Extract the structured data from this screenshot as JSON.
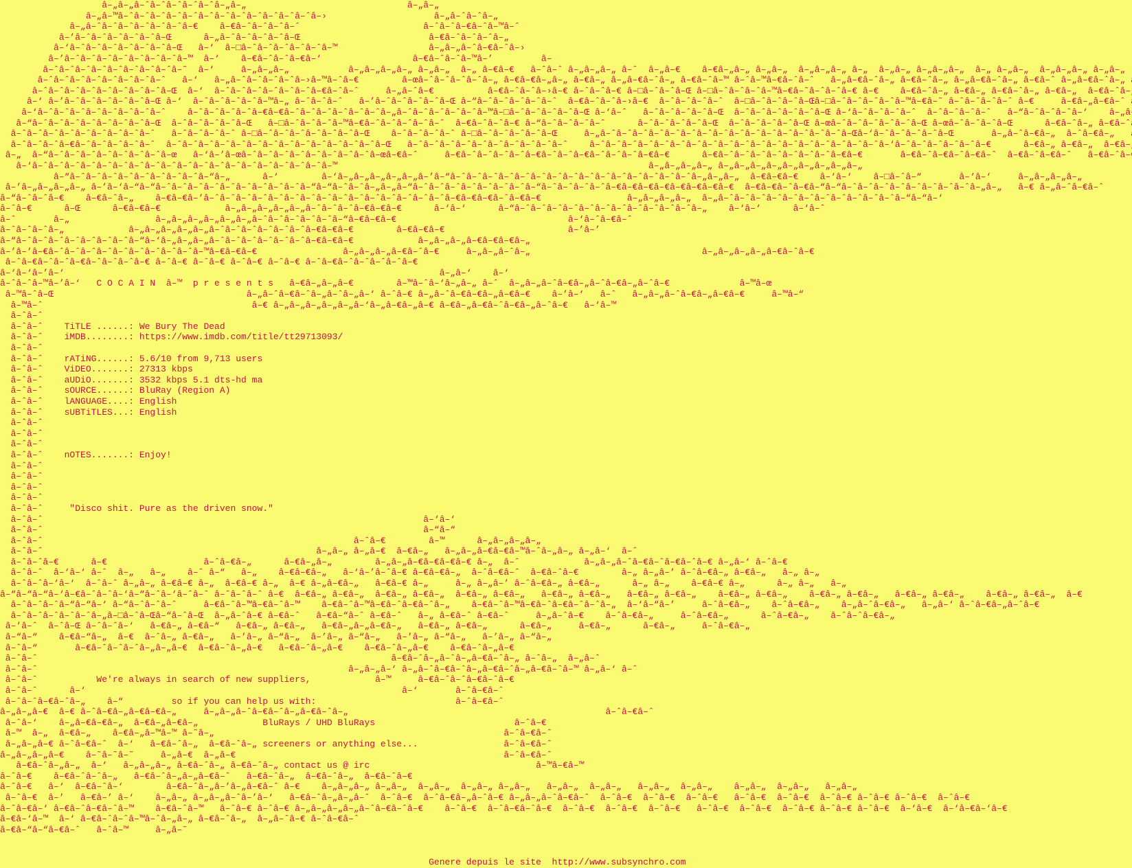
{
  "colors": {
    "background": "#fbfb73",
    "text": "#c81040"
  },
  "release": {
    "group": "COCAIN",
    "presents_line": "C O C A I N    p r e s e n t s",
    "fields": [
      {
        "label": "TiTLE ......",
        "value": "We Bury The Dead"
      },
      {
        "label": "iMDB........",
        "value": "https://www.imdb.com/title/tt29713093/"
      },
      {
        "label": "rATiNG......",
        "value": "5.6/10 from 9,713 users"
      },
      {
        "label": "ViDEO.......",
        "value": "27313 kbps"
      },
      {
        "label": "aUDiO.......",
        "value": "3532 kbps 5.1 dts-hd ma"
      },
      {
        "label": "sOURCE......",
        "value": "BluRay (Region A)"
      },
      {
        "label": "lANGUAGE....",
        "value": "English"
      },
      {
        "label": "sUBTiTLES...",
        "value": "English"
      },
      {
        "label": "nOTES.......",
        "value": "Enjoy!"
      }
    ],
    "quote": "\"Disco shit. Pure as the driven snow.\"",
    "recruitment": [
      "We're always in search of new suppliers,",
      "so if you can help us with:",
      "BluRays / UHD BluRays",
      "screeners or anything else...",
      "contact us @ irc"
    ]
  },
  "footer": {
    "credit": "Genere depuis le site  http://www.subsynchro.com"
  },
  "nfo": {
    "lines": [
      "                   â–„â–„â–ˆâ–ˆâ–ˆâ–ˆâ–ˆâ–„â–„                              â–„â–„",
      "                â–„â–™â–ˆâ–ˆâ–ˆâ–ˆâ–ˆâ–ˆâ–ˆâ–ˆâ–ˆâ–ˆâ–ˆâ–ˆâ–›                    â–„â–ˆâ–ˆâ–„",
      "             â–„â–ˆâ–ˆâ–ˆâ–ˆâ–ˆâ–ˆâ–€    â–€â–ˆâ–ˆâ–ˆâ–ˆ                       â–ˆâ–ˆâ–€â–ˆâ–™â–ˆ",
      "           â–’â–ˆâ–ˆâ–ˆâ–ˆâ–ˆâ–Œ      â–„â–ˆâ–ˆâ–ˆâ–ˆâ–Œ                        â–€â–ˆâ–ˆâ–ˆâ–„",
      "          â–‘â–ˆâ–ˆâ–ˆâ–ˆâ–ˆâ–ˆâ–Œ   â–‘  â–□â–ˆâ–ˆâ–ˆâ–ˆâ–ˆâ–™                 â–„â–„â–ˆâ–€â–ˆâ–›",
      "         â–’â–ˆâ–ˆâ–ˆâ–ˆâ–ˆâ–ˆâ–ˆâ–™  â–‘    â–€â–ˆâ–ˆâ–€â–‘                 â–€â–ˆâ–ˆâ–™â–’         â–",
      "        â–ˆâ–ˆâ–ˆâ–ˆâ–ˆâ–ˆâ–ˆâ–ˆâ–˜  â–‘     â–„â–„â–„           â–„â–„â–„â–„ â–„â–„  â–„ â–€â–€   â–ˆâ–ˆ â–„â–„â–„ â–ˆ  â–„â–€    â–€â–„â–„ â–„â–„  â–„â–„â–„ â–„  â–„â–„ â–„â–„â–„  â–„ â–„â–„  â–„â–„â–„ â–„â–„  â–„â–„  â–„â–„â–„ â–„  â–„â–„",
      "       â–ˆâ–ˆâ–ˆâ–ˆâ–ˆâ–ˆâ–ˆâ–ˆ   â–‘   â–„â–ˆâ–ˆâ–ˆâ–ˆâ–›â–™â–ˆâ–€        â–œâ–ˆâ–ˆâ–ˆâ–ˆâ–„ â–€â–€â–„â–„ â–€â–„ â–„â–€â–ˆâ–„ â–€â–ˆâ–™ â–ˆâ–™â–€â–ˆâ–ˆ   â–„â–€â–ˆâ–„ â–€â–ˆâ–„ â–„â–€â–ˆâ–„ â–€â–ˆ â–„â–€â–ˆâ–„ â–€â–ˆâ–™ â–„â–€â–ˆâ–„ â–€â–ˆâ–„ â–„â–€â–ˆâ–„ â–€â–ˆâ–™  â–„â–€",
      "      â–ˆâ–ˆâ–ˆâ–ˆâ–ˆâ–ˆâ–ˆâ–ˆâ–Œ  â–‘  â–ˆâ–ˆâ–ˆâ–ˆâ–ˆâ–ˆâ–€â–ˆâ–ˆ     â–„â–ˆâ–€          â–€â–ˆâ–ˆâ–›â–€ â–ˆâ–ˆâ–€ â–□â–ˆâ–ˆâ–Œ â–□â–ˆâ–ˆâ–ˆâ–™â–€â–˜â–ˆâ–ˆâ–€ â–€    â–€â–ˆâ–„ â–€â–„ â–€â–ˆâ–„ â–€â–„  â–€â–ˆâ–„ â–€â–„  â–€â–ˆâ–„ â–€â–„  â–€â–ˆâ–„ â–€â–„  â–€â–ˆ",
      "     â–‘ â–’â–ˆâ–ˆâ–ˆâ–ˆâ–ˆâ–Œ â–‘  â–ˆâ–ˆâ–ˆâ–ˆâ–™â–„ â–ˆâ–ˆâ–ˆ   â–’â–ˆâ–ˆâ–ˆâ–ˆâ–Œ â–“â–ˆâ–ˆâ–ˆâ–ˆâ–ˆ  â–€â–ˆâ–ˆâ–›â–€  â–ˆâ–ˆâ–ˆâ–ˆ  â–□â–ˆâ–ˆâ–ˆâ–Œâ–□â–ˆâ–ˆâ–ˆâ–ˆâ–™â–€â–˜ â–ˆâ–ˆâ–ˆâ–ˆ â–€     â–€â–„â–€â–ˆ â–€â–„â–€â–ˆ  â–€â–„â–€â–ˆ  â–€â–„â–€â–ˆ   â–€â–„â–€â–ˆ",
      "    â–‘â–ˆâ–ˆâ–ˆâ–ˆâ–ˆâ–ˆâ–ˆâ–ˆ    â–ˆâ–ˆâ–ˆâ–ˆâ–€â–€â–ˆâ–ˆâ–ˆâ–ˆâ–ˆâ–ˆâ–„â–ˆâ–ˆâ–ˆâ–ˆâ–ˆâ–™â–□â–ˆâ–ˆâ–ˆâ–ˆâ–Œ â–‘â–ˆ   â–ˆâ–ˆâ–ˆâ–ˆâ–Œ  â–ˆâ–ˆâ–ˆâ–ˆâ–ˆâ–Œ â–‘â–ˆâ–ˆâ–ˆâ–ˆ  â–ˆâ–ˆâ–ˆâ–ˆ   â–“â–ˆâ–ˆâ–ˆâ–‘    â–„â–ˆâ–€â–ˆ â–„â–ˆâ–€â–ˆ  â–„â–ˆâ–€â–ˆ  â–„â–ˆâ–€â–ˆ   â–„â–ˆâ–€â–ˆ  â–„â–€",
      "   â–“â–ˆâ–ˆâ–ˆâ–ˆâ–ˆâ–ˆâ–ˆâ–Œ  â–ˆâ–ˆâ–ˆâ–ˆâ–Œ   â–□â–ˆâ–ˆâ–ˆâ–™â–€â–ˆâ–ˆâ–ˆâ–ˆâ–ˆ  â–€â–ˆâ–ˆâ–€ â–“â–ˆâ–ˆâ–ˆâ–ˆ      â–ˆâ–ˆâ–ˆâ–ˆâ–Œ  â–ˆâ–ˆâ–ˆâ–ˆâ–Œ â–œâ–ˆâ–ˆâ–ˆâ–ˆâ–ˆâ–Œ â–œâ–ˆâ–ˆâ–ˆâ–Œ      â–€â–ˆâ–„ â–€â–ˆâ–„  â–€â–ˆâ–„  â–€â–ˆâ–„   â–€â–ˆâ–„  â–€",
      "  â–ˆâ–ˆâ–ˆâ–ˆâ–ˆâ–ˆâ–ˆâ–ˆâ–ˆ   â–ˆâ–ˆâ–ˆâ–ˆ â–□â–ˆâ–ˆâ–ˆâ–ˆâ–ˆâ–ˆâ–Œ    â–ˆâ–ˆâ–ˆâ–ˆ â–□â–ˆâ–ˆâ–ˆâ–ˆâ–Œ     â–„â–ˆâ–ˆâ–ˆâ–ˆâ–ˆâ–ˆâ–ˆâ–ˆâ–ˆâ–ˆâ–ˆâ–ˆâ–ˆâ–ˆâ–ˆâ–Œâ–‘â–ˆâ–ˆâ–ˆâ–ˆâ–Œ       â–„â–ˆâ–€â–„  â–ˆâ–€â–„   â–ˆâ–€â–„   â–ˆâ–€â–„    â–ˆâ–€â–„",
      "  â–ˆâ–ˆâ–ˆâ–€â–ˆâ–ˆâ–ˆâ–ˆâ–ˆ  â–ˆâ–ˆâ–ˆâ–ˆâ–ˆâ–ˆâ–ˆâ–ˆâ–ˆâ–ˆâ–ˆâ–ˆâ–ˆâ–Œ   â–ˆâ–ˆâ–ˆâ–ˆâ–ˆâ–ˆâ–ˆâ–ˆâ–ˆâ–ˆ    â–ˆâ–ˆâ–ˆâ–ˆâ–ˆâ–ˆâ–ˆâ–ˆâ–ˆâ–ˆâ–ˆâ–ˆâ–ˆâ–ˆâ–ˆâ–ˆâ–ˆâ–ˆâ–‘â–ˆâ–ˆâ–ˆâ–ˆâ–ˆâ–€      â–€â–„ â–€â–„  â–€â–„ â–€â–„  â–€â–„ â–€â–„   â–€â–„ â–€â–„    â–€â–„",
      " â–„  â–“â–ˆâ–ˆâ–ˆâ–ˆâ–ˆâ–ˆâ–ˆâ–œ   â–‘â–’â–œâ–ˆâ–ˆâ–ˆâ–ˆâ–ˆâ–ˆâ–ˆâ–ˆâ–œâ–€â–ˆ     â–€â–ˆâ–ˆâ–ˆâ–ˆâ–€â–ˆâ–ˆâ–€â–ˆâ–ˆâ–ˆâ–€â–€      â–€â–ˆâ–ˆâ–ˆâ–ˆâ–ˆâ–ˆâ–ˆâ–€â–€       â–€â–ˆâ–€â–ˆâ–€â–ˆ  â–€â–ˆâ–€â–ˆ   â–€â–ˆâ–€â–ˆ    â–€â–ˆ",
      "   â–‘â–ˆâ–ˆâ–ˆâ–ˆâ–ˆâ–ˆâ–ˆâ–ˆâ–ˆâ–ˆâ–ˆâ–ˆâ–ˆâ–ˆâ–ˆâ–ˆâ–ˆâ–ˆâ–™                                                          â–„â–„â–„â–„ â–„â–„â–„â–„â–„â–„â–„â–„â–„",
      "          â–“â–ˆâ–ˆâ–ˆâ–ˆâ–ˆâ–ˆâ–ˆâ–ˆâ–“â–„      â–‘        â–‘â–„â–„â–„â–„â–„â–’â–“â–ˆâ–ˆâ–ˆâ–ˆâ–ˆâ–ˆâ–ˆâ–ˆâ–ˆâ–ˆâ–ˆâ–ˆâ–ˆâ–ˆâ–ˆâ–„â–„â–„  â–€â–€â–€    â–‘â–‘    â–□â–ˆâ–“       â–‘â–‘     â–„â–„â–„â–„",
      " â–’â–„â–„â–„â–„ â–’â–‘â–“â–“â–ˆâ–ˆâ–ˆâ–ˆâ–ˆâ–ˆâ–ˆâ–ˆâ–ˆâ–“â–“â–ˆâ–ˆâ–„â–„â–“â–ˆâ–ˆâ–ˆâ–ˆâ–ˆâ–ˆâ–ˆâ–“â–ˆâ–ˆâ–ˆâ–ˆâ–€â–€â–€â–€â–€â–€â–€â–€  â–€â–€â–ˆâ–€â–“â–“â–ˆâ–ˆâ–ˆâ–ˆâ–ˆâ–ˆâ–ˆâ–ˆâ–„â–„   â–€ â–„â–ˆâ–€â–ˆ      â–€ â–„â–ˆâ–€â–ˆâ–€",
      "â–“â–ˆâ–ˆâ–€    â–€â–ˆâ–„    â–€â–€â–’â–ˆâ–ˆâ–ˆâ–ˆâ–ˆâ–ˆâ–ˆâ–ˆâ–ˆâ–ˆâ–ˆâ–ˆâ–ˆâ–ˆâ–ˆâ–€â–€â–€â–ˆâ–€â–€                â–„â–„â–„â–„  â–„â–ˆâ–ˆâ–ˆâ–ˆâ–ˆâ–ˆâ–ˆâ–ˆâ–ˆâ–ˆâ–ˆâ–“â–“â–‘",
      "â–ˆâ–€      â–Œ      â–€â–€â–€            â–„â–„â–„â–„â–„â–ˆâ–ˆâ–ˆâ–€â–€â–€      â–‘â–‘      â–“â–ˆâ–ˆâ–ˆâ–ˆâ–ˆâ–ˆâ–ˆâ–ˆâ–ˆâ–ˆâ–ˆâ–„    â–‘â–‘      â–‘â–ˆ",
      "â–ˆ       â–„                â–„â–„â–„â–„â–„â–„â–ˆâ–ˆâ–ˆâ–ˆâ–ˆâ–“â–€â–€â–€                                â–‘â–ˆâ–€â–ˆ",
      "â–ˆâ–ˆâ–ˆâ–„            â–„â–„â–„â–„â–„â–ˆâ–ˆâ–ˆâ–ˆâ–ˆâ–ˆâ–€â–€â–€        â–€â–€â–€                       â–’â–’",
      "â–“â–ˆâ–ˆâ–ˆâ–ˆâ–ˆâ–ˆâ–ˆâ–“â–‘â–„â–„â–„â–ˆâ–ˆâ–ˆâ–ˆâ–ˆâ–ˆâ–€â–€â–€            â–„â–„â–„â–€â–€â–€â–„",
      "â–’â–’â–€â–ˆâ–ˆâ–ˆâ–ˆâ–ˆâ–ˆâ–ˆâ–ˆâ–ˆâ–™â–€â–€â–€                â–„â–„â–„â–€â–ˆâ–€     â–„â–„â–ˆâ–„                                â–„â–„â–„â–„â–€â–ˆâ–€",
      " â–ˆâ–€â–ˆâ–ˆâ–€â–ˆâ–ˆâ–ˆâ–€ â–ˆâ–€ â–ˆâ–€ â–ˆâ–€ â–ˆâ–€ â–ˆâ–€â–ˆâ–ˆâ–ˆâ–ˆâ–€",
      "â–‘â–‘â–’â–‘                                                                      â–„â–‘    â–‘",
      "â–ˆâ–ˆâ–™â–’â–‘   C O C A I N  â–™  p r e s e n t s   â–€â–„â–„â–€        â–™â–ˆâ–‘â–„â–„ â–ˆ  â–„â–„â–ˆâ–€â–„â–ˆâ–€â–„â–ˆâ–€             â–™â–œ",
      " â–™â–ˆâ–Œ                                    â–„â–ˆâ–€â–ˆâ–„â–ˆâ–„â–‘ â–ˆâ–€ â–„â–ˆâ–€â–€â–„â–€â–€    â–’â–‘   â–ˆ   â–„â–„â–ˆâ–€â–„â–€â–€     â–™â–“",
      "  â–™â–ˆ                                       â–€ â–„â–„â–„â–„â–„â–‘â–„â–€â–„â–€ â–€â–„â–€â–ˆâ–€â–„â–ˆâ–€   â–‘â–™",
      "  â–ˆâ–ˆ",
      "  â–ˆâ–ˆ    TiTLE ......: We Bury The Dead",
      "  â–ˆâ–ˆ    iMDB........: https://www.imdb.com/title/tt29713093/",
      "  â–ˆâ–ˆ",
      "  â–ˆâ–ˆ    rATiNG......: 5.6/10 from 9,713 users",
      "  â–ˆâ–ˆ    ViDEO.......: 27313 kbps",
      "  â–ˆâ–ˆ    aUDiO.......: 3532 kbps 5.1 dts-hd ma",
      "  â–ˆâ–ˆ    sOURCE......: BluRay (Region A)",
      "  â–ˆâ–ˆ    lANGUAGE....: English",
      "  â–ˆâ–ˆ    sUBTiTLES...: English",
      "  â–ˆâ–ˆ",
      "  â–ˆâ–ˆ",
      "  â–ˆâ–ˆ",
      "  â–ˆâ–ˆ    nOTES.......: Enjoy!",
      "  â–ˆâ–ˆ",
      "  â–ˆâ–ˆ",
      "  â–ˆâ–ˆ",
      "  â–ˆâ–ˆ",
      "  â–ˆâ–ˆ     \"Disco shit. Pure as the driven snow.\"",
      "  â–ˆâ–ˆ                                                                       â–‘â–‘",
      "  â–ˆâ–ˆ                                                                       â–“â–“",
      "  â–ˆâ–ˆ                                                          â–ˆâ–€        â–™      â–„â–„â–„â–„",
      "  â–ˆâ–ˆ                                                   â–„â–„ â–„â–€  â–€â–„   â–„â–„â–€â–€â–™â–ˆâ–„â–„ â–„â–‘  â–ˆ",
      "  â–ˆâ–ˆâ–€      â–€                  â–ˆâ–€â–„      â–€â–„â–„        â–„â–„â–€â–€â–€â–€ â–„  â–ˆ            â–„â–„â–ˆâ–€â–ˆâ–€â–ˆâ–€ â–„â–‘ â–ˆâ–€",
      "  â–ˆâ–ˆ  â–‘â–‘ â–ˆ  â–„   â–„    â–ˆ â–“   â–„    â–€â–€â–„   â–‘â–’â–ˆâ–€ â–€â–€â–„  â–ˆâ–€â–ˆ  â–€â–ˆâ–€        â–„ â–„â–’ â–ˆâ–€â–„ â–€â–„   â–„ â–„",
      "  â–ˆâ–ˆâ–‘â–‘  â–ˆâ–ˆ â–„â–„ â–€â–€ â–„  â–€â–€ â–„  â–€ â–„â–€â–„   â–€â–€ â–„     â–„ â–„â–’ â–ˆâ–€â–„ â–€â–„      â–„ â–„    â–€â–€ â–„      â–„ â–„   â–„",
      "â–“â–“â–“â–‘â–€â–ˆâ–ˆâ–‘â–“â–ˆâ–‘â–ˆâ–ˆ â–ˆâ–ˆâ–ˆ â–€  â–€â–„ â–€â–„  â–€â–„ â–€â–„  â–€â–„ â–€â–„   â–€â–„ â–€â–„   â–€â–„ â–€â–„    â–€â–„ â–€â–„    â–€â–„ â–€â–„   â–€â–„ â–€â–„    â–€â–„ â–€â–„  â–€",
      "  â–ˆâ–ˆâ–ˆâ–“â–“â–‘ â–“â–ˆâ–ˆâ–ˆ     â–€â–ˆâ–™â–€â–ˆâ–™    â–€â–ˆâ–™â–€â–ˆâ–€â–ˆâ–„    â–€â–ˆâ–™â–€â–ˆâ–€â–ˆâ–ˆâ–„  â–‘â–“â–’     â–ˆâ–€â–„    â–ˆâ–€â–„    â–„â–ˆâ–€â–„   â–„â–‘ â–ˆâ–€â–„â–ˆâ–€",
      "  â–ˆâ–ˆâ–ˆâ–ˆâ–ˆâ–„â–□â–ˆâ–Œâ–“â–ˆâ–Œ  â–„â–ˆâ–€ â–€â–ˆ   â–€â–“â–ˆ â–€â–ˆ   â–„ â–€â–ˆ â–€â–ˆ     â–„â–ˆâ–€    â–ˆâ–€â–„     â–ˆâ–€â–„      â–ˆâ–€â–„    â–ˆâ–ˆâ–€â–„",
      " â–’â–ˆ  â–ˆâ–Œ â–ˆâ–ˆâ–‘   â–€â–„ â–€â–“   â–€â–„ â–€â–„   â–€â–„â–„â–€â–„   â–€â–„ â–€â–„      â–€â–„     â–€â–„      â–€â–„     â–ˆâ–€â–„",
      " â–“â–“    â–€â–“â–„  â–€  â–ˆâ–„ â–€â–„   â–’â–„ â–“â–„  â–’â–„ â–“â–„   â–’â–„ â–“â–„   â–’â–„ â–“â–„",
      " â–ˆâ–“       â–€â–ˆâ–ˆâ–ˆâ–„â–„â–€  â–€â–ˆâ–„â–€   â–€â–ˆâ–„â–€    â–€â–ˆâ–„â–€    â–€â–ˆâ–„â–€",
      " â–ˆâ–ˆ                                                                  â–€â–ˆâ–„â–ˆâ–„â–€â–ˆâ–„ â–ˆâ–„  â–„â–ˆ",
      " â–ˆâ–ˆ                                                          â–„â–„â–‘ â–„â–ˆâ–€â–ˆâ–„â–€â–ˆâ–„â–€â–ˆâ–™ â–„â–‘ â–ˆ",
      " â–ˆâ–ˆ           We're always in search of new suppliers,            â–™     â–€â–ˆâ–ˆâ–€â–ˆâ–€",
      " â–ˆâ–ˆ      â–‘                                                           â–‘       â–ˆâ–€â–ˆ",
      " â–ˆâ–ˆâ–€â–ˆâ–„    â–“         so if you can help us with:                          â–ˆâ–€â–ˆ",
      "â–„â–„â–€  â–€ â–ˆâ–€â–„â–€â–€â–„     â–„â–„â–ˆâ–€â–ˆâ–„â–€â–ˆâ–„                                                â–ˆâ–€â–ˆ",
      " â–ˆâ–‘    â–„â–€â–€â–„  â–€â–„â–€â–„            BluRays / UHD BluRays                          â–ˆâ–€",
      " â–™  â–„  â–€â–„    â–€â–„â–™â–™ â–˜â–„                                                      â–ˆâ–€â–ˆ",
      " â–„â–„â–€ â–ˆâ–€â–ˆ  â–‘   â–€â–ˆâ–„  â–€â–ˆâ–„ screeners or anything else...                â–ˆâ–€â–ˆ",
      "â–„â–„â–„â–€    â–˜â–˜â–˜     â–„â–€  â–„â–€                                                  â–ˆâ–€â–ˆ",
      "   â–€â–ˆâ–„â–„  â–‘   â–„â–„â–„ â–€â–ˆâ–„ â–€â–ˆâ–„ contact us @ irc                               â–™â–€â–™",
      "â–ˆâ–€    â–€â–ˆâ–ˆâ–„   â–€â–ˆâ–„â–„â–€â–ˆ   â–€â–ˆâ–„  â–€â–ˆâ–„  â–€â–ˆâ–€",
      "â–ˆâ–€   â–‘  â–€â–ˆâ–‘        â–€â–ˆâ–„â–’â–„â–€â–ˆ â–€    â–„â–„â–„ â–„â–„  â–„â–„  â–„â–„ â–„â–„   â–„â–„  â–„â–„   â–„â–„  â–„â–„    â–„â–„  â–„â–„   â–„â–„",
      " â–ˆâ–€  â–’   â–€â–’ â–‘    â–„â–„ â–„â–„â–ˆâ–’â–‘   â–€â–ˆâ–„â–„â–ˆ  â–ˆâ–€  â–ˆâ–€â–„â–ˆâ–€ â–„â–„â–ˆâ–€â–ˆ  â–ˆâ–€  â–ˆâ–€  â–ˆâ–€   â–ˆâ–€  â–ˆâ–€  â–ˆâ–€ â–ˆâ–€ â–ˆâ–€  â–ˆâ–€",
      "â–ˆâ–€â–‘ â–€â–ˆâ–€â–ˆâ–™    â–€â–ˆâ–™   â–ˆâ–€ â–ˆâ–€ â–„â–„â–„â–„â–ˆâ–€â–ˆâ–€    â–ˆâ–€  â–ˆâ–€â–ˆâ–€  â–ˆâ–€  â–ˆâ–€  â–ˆâ–€   â–ˆâ–€  â–ˆâ–€  â–ˆâ–€ â–ˆâ–€ â–ˆâ–€  â–‘â–€  â–‘â–€â–‘â–€",
      "â–€â–‘â–™  â–‘ â–€â–ˆâ–ˆâ–™â–ˆâ–„â–„ â–€â–ˆâ–„  â–„â–ˆâ–€ â–ˆâ–€â–ˆ",
      "â–€â–“â–“â–€â–ˆ   â–ˆâ–™     â–„â–˜",
      "",
      "",
      "                                                                                Genere depuis le site  http://www.subsynchro.com"
    ]
  }
}
